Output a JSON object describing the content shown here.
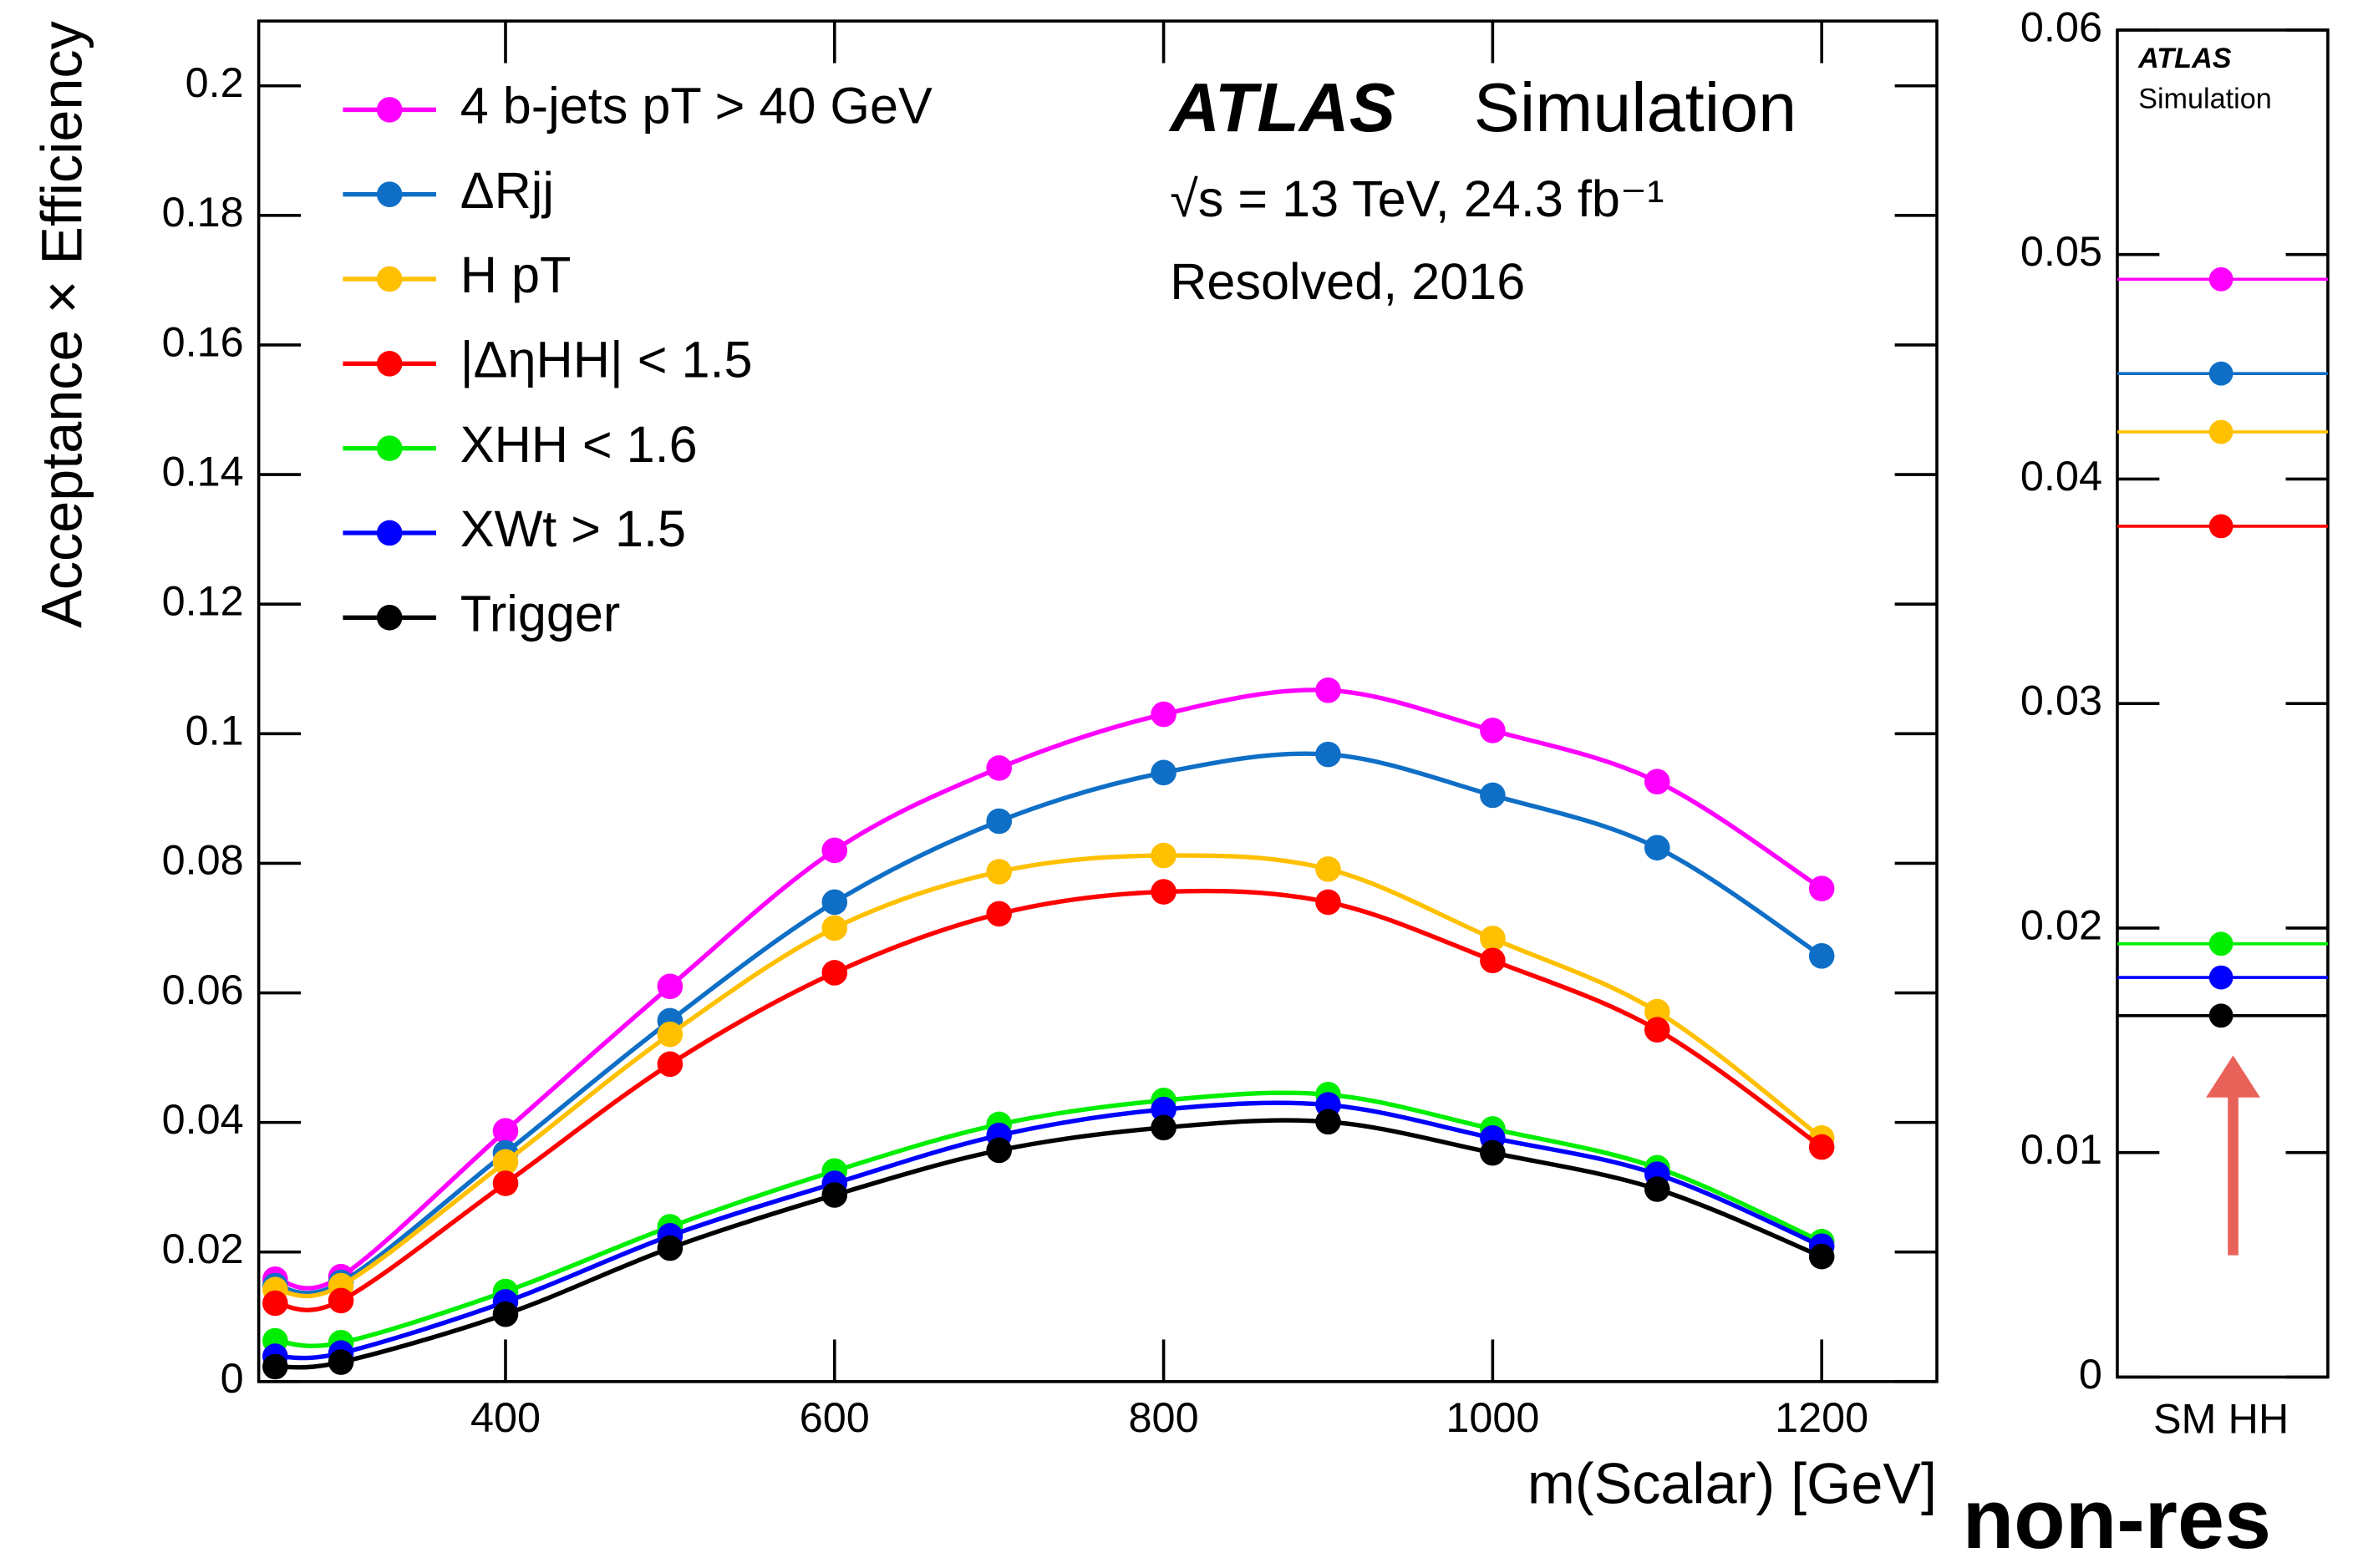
{
  "chart_data": [
    {
      "type": "line",
      "x": [
        260,
        300,
        400,
        500,
        600,
        700,
        800,
        900,
        1000,
        1100,
        1200
      ],
      "xlim": [
        250,
        1270
      ],
      "xticks": [
        400,
        600,
        800,
        1000,
        1200
      ],
      "ylim": [
        0,
        0.21
      ],
      "yticks": [
        0,
        0.02,
        0.04,
        0.06,
        0.08,
        0.1,
        0.12,
        0.14,
        0.16,
        0.18,
        0.2
      ],
      "xlabel": "m(Scalar) [GeV]",
      "ylabel": "Acceptance × Efficiency",
      "annotations": [
        "ATLAS",
        "Simulation",
        "√s = 13 TeV, 24.3 fb⁻¹",
        "Resolved, 2016"
      ],
      "series": [
        {
          "name": "4 b-jets pT > 40 GeV",
          "color": "#ff00ff",
          "values": [
            0.0158,
            0.0162,
            0.0387,
            0.061,
            0.082,
            0.0947,
            0.103,
            0.1067,
            0.1005,
            0.0926,
            0.0761
          ]
        },
        {
          "name": "ΔRjj",
          "color": "#0f6fc6",
          "values": [
            0.0148,
            0.0153,
            0.0353,
            0.0557,
            0.074,
            0.0865,
            0.094,
            0.0968,
            0.0905,
            0.0824,
            0.0657
          ]
        },
        {
          "name": "H pT",
          "color": "#ffc000",
          "values": [
            0.0142,
            0.0148,
            0.0339,
            0.0536,
            0.07,
            0.0787,
            0.0812,
            0.0791,
            0.0684,
            0.0571,
            0.0376
          ]
        },
        {
          "name": "|ΔηHH| < 1.5",
          "color": "#ff0000",
          "values": [
            0.0121,
            0.0125,
            0.0306,
            0.049,
            0.0631,
            0.0722,
            0.0756,
            0.074,
            0.065,
            0.0543,
            0.0362
          ]
        },
        {
          "name": "XHH < 1.6",
          "color": "#00ee00",
          "values": [
            0.0063,
            0.006,
            0.0139,
            0.0239,
            0.0325,
            0.0397,
            0.0434,
            0.0443,
            0.039,
            0.033,
            0.0216
          ]
        },
        {
          "name": "XWt > 1.5",
          "color": "#0000ff",
          "values": [
            0.0039,
            0.0044,
            0.0123,
            0.0225,
            0.0306,
            0.038,
            0.042,
            0.0427,
            0.0376,
            0.032,
            0.0209
          ]
        },
        {
          "name": "Trigger",
          "color": "#000000",
          "values": [
            0.0023,
            0.003,
            0.0104,
            0.0206,
            0.0288,
            0.0357,
            0.0392,
            0.0401,
            0.0353,
            0.0297,
            0.0193
          ]
        }
      ]
    },
    {
      "type": "level",
      "categories": [
        "SM HH"
      ],
      "ylim": [
        0,
        0.06
      ],
      "yticks": [
        0,
        0.01,
        0.02,
        0.03,
        0.04,
        0.05,
        0.06
      ],
      "annotations": [
        "ATLAS",
        "Simulation",
        "non-res"
      ],
      "series": [
        {
          "color": "#ff00ff",
          "values": [
            0.0489
          ]
        },
        {
          "color": "#0f6fc6",
          "values": [
            0.0447
          ]
        },
        {
          "color": "#ffc000",
          "values": [
            0.0421
          ]
        },
        {
          "color": "#ff0000",
          "values": [
            0.0379
          ]
        },
        {
          "color": "#00ee00",
          "values": [
            0.0193
          ]
        },
        {
          "color": "#0000ff",
          "values": [
            0.0178
          ]
        },
        {
          "color": "#000000",
          "values": [
            0.0161
          ]
        }
      ]
    }
  ]
}
